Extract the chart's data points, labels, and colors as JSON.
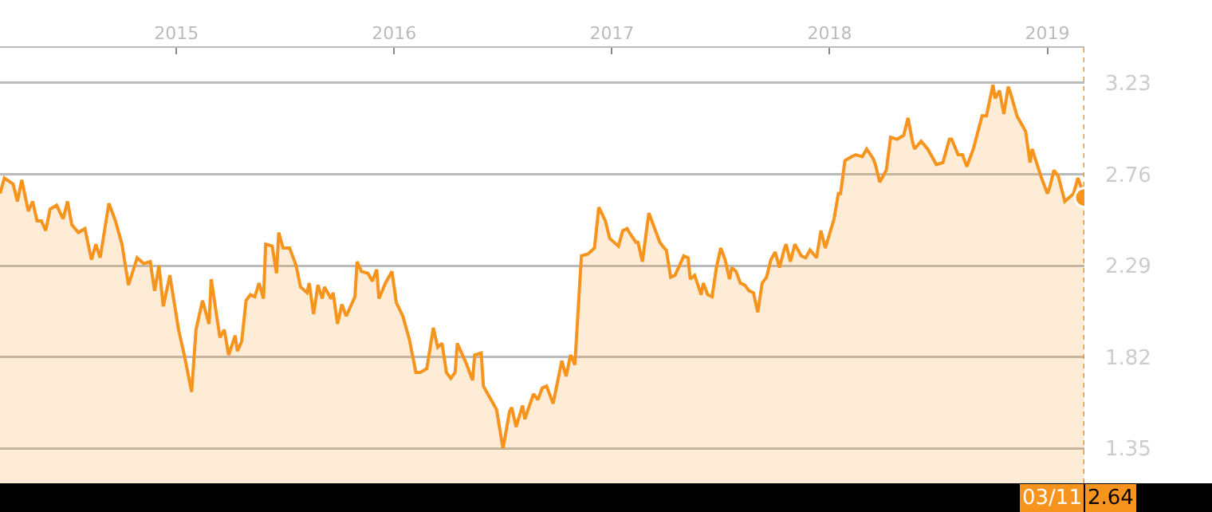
{
  "chart_data": {
    "type": "area",
    "x": [
      2014.19,
      2014.21,
      2014.25,
      2014.27,
      2014.29,
      2014.32,
      2014.34,
      2014.36,
      2014.38,
      2014.4,
      2014.42,
      2014.45,
      2014.48,
      2014.5,
      2014.52,
      2014.55,
      2014.58,
      2014.61,
      2014.63,
      2014.65,
      2014.69,
      2014.72,
      2014.75,
      2014.78,
      2014.82,
      2014.85,
      2014.88,
      2014.9,
      2014.92,
      2014.94,
      2014.97,
      2015.01,
      2015.04,
      2015.07,
      2015.09,
      2015.12,
      2015.15,
      2015.16,
      2015.2,
      2015.22,
      2015.24,
      2015.27,
      2015.28,
      2015.3,
      2015.32,
      2015.34,
      2015.36,
      2015.38,
      2015.4,
      2015.41,
      2015.44,
      2015.46,
      2015.47,
      2015.49,
      2015.52,
      2015.55,
      2015.57,
      2015.6,
      2015.61,
      2015.63,
      2015.65,
      2015.67,
      2015.68,
      2015.71,
      2015.72,
      2015.74,
      2015.76,
      2015.78,
      2015.82,
      2015.83,
      2015.85,
      2015.88,
      2015.9,
      2015.92,
      2015.93,
      2015.96,
      2015.99,
      2016.01,
      2016.04,
      2016.07,
      2016.1,
      2016.12,
      2016.15,
      2016.18,
      2016.2,
      2016.22,
      2016.24,
      2016.26,
      2016.28,
      2016.29,
      2016.33,
      2016.36,
      2016.37,
      2016.4,
      2016.41,
      2016.44,
      2016.47,
      2016.5,
      2016.53,
      2016.54,
      2016.56,
      2016.59,
      2016.6,
      2016.64,
      2016.66,
      2016.68,
      2016.7,
      2016.73,
      2016.77,
      2016.79,
      2016.81,
      2016.83,
      2016.86,
      2016.89,
      2016.92,
      2016.94,
      2016.97,
      2016.99,
      2017.03,
      2017.05,
      2017.07,
      2017.08,
      2017.11,
      2017.12,
      2017.14,
      2017.16,
      2017.17,
      2017.22,
      2017.24,
      2017.25,
      2017.27,
      2017.29,
      2017.33,
      2017.35,
      2017.36,
      2017.38,
      2017.41,
      2017.42,
      2017.44,
      2017.46,
      2017.48,
      2017.5,
      2017.52,
      2017.54,
      2017.55,
      2017.57,
      2017.59,
      2017.61,
      2017.63,
      2017.65,
      2017.67,
      2017.69,
      2017.71,
      2017.73,
      2017.75,
      2017.77,
      2017.79,
      2017.8,
      2017.82,
      2017.84,
      2017.87,
      2017.89,
      2017.91,
      2017.94,
      2017.96,
      2017.98,
      2018.02,
      2018.04,
      2018.05,
      2018.07,
      2018.1,
      2018.12,
      2018.15,
      2018.17,
      2018.2,
      2018.21,
      2018.23,
      2018.26,
      2018.28,
      2018.31,
      2018.34,
      2018.36,
      2018.38,
      2018.39,
      2018.42,
      2018.45,
      2018.49,
      2018.52,
      2018.55,
      2018.56,
      2018.59,
      2018.61,
      2018.63,
      2018.66,
      2018.7,
      2018.72,
      2018.75,
      2018.76,
      2018.78,
      2018.8,
      2018.82,
      2018.83,
      2018.86,
      2018.88,
      2018.9,
      2018.92,
      2018.93,
      2018.97,
      2019.0,
      2019.01,
      2019.03,
      2019.05,
      2019.08,
      2019.11,
      2019.12,
      2019.14,
      2019.16,
      2019.17
    ],
    "series": [
      {
        "color": "#f7941d",
        "values": [
          2.66,
          2.74,
          2.71,
          2.62,
          2.73,
          2.57,
          2.62,
          2.52,
          2.52,
          2.47,
          2.58,
          2.6,
          2.53,
          2.62,
          2.5,
          2.46,
          2.48,
          2.32,
          2.4,
          2.33,
          2.61,
          2.52,
          2.4,
          2.19,
          2.33,
          2.3,
          2.31,
          2.16,
          2.29,
          2.08,
          2.24,
          1.96,
          1.81,
          1.64,
          1.96,
          2.11,
          1.99,
          2.22,
          1.92,
          1.96,
          1.83,
          1.93,
          1.85,
          1.9,
          2.11,
          2.14,
          2.13,
          2.2,
          2.12,
          2.4,
          2.39,
          2.25,
          2.46,
          2.38,
          2.38,
          2.29,
          2.18,
          2.15,
          2.2,
          2.04,
          2.19,
          2.12,
          2.18,
          2.12,
          2.15,
          1.99,
          2.09,
          2.03,
          2.13,
          2.31,
          2.26,
          2.25,
          2.21,
          2.27,
          2.12,
          2.2,
          2.26,
          2.1,
          2.03,
          1.91,
          1.74,
          1.74,
          1.76,
          1.97,
          1.87,
          1.89,
          1.74,
          1.71,
          1.74,
          1.89,
          1.79,
          1.7,
          1.83,
          1.84,
          1.67,
          1.61,
          1.55,
          1.35,
          1.54,
          1.56,
          1.46,
          1.57,
          1.5,
          1.63,
          1.6,
          1.66,
          1.67,
          1.58,
          1.8,
          1.72,
          1.83,
          1.78,
          2.34,
          2.35,
          2.38,
          2.59,
          2.52,
          2.43,
          2.39,
          2.47,
          2.48,
          2.46,
          2.41,
          2.41,
          2.31,
          2.48,
          2.56,
          2.41,
          2.38,
          2.37,
          2.23,
          2.24,
          2.34,
          2.33,
          2.22,
          2.24,
          2.14,
          2.2,
          2.14,
          2.13,
          2.28,
          2.38,
          2.32,
          2.22,
          2.28,
          2.26,
          2.2,
          2.19,
          2.16,
          2.15,
          2.05,
          2.2,
          2.23,
          2.32,
          2.36,
          2.28,
          2.37,
          2.4,
          2.31,
          2.4,
          2.34,
          2.33,
          2.37,
          2.33,
          2.47,
          2.38,
          2.53,
          2.66,
          2.66,
          2.83,
          2.85,
          2.86,
          2.85,
          2.89,
          2.84,
          2.81,
          2.72,
          2.78,
          2.95,
          2.94,
          2.96,
          3.05,
          2.93,
          2.89,
          2.93,
          2.89,
          2.81,
          2.82,
          2.94,
          2.94,
          2.86,
          2.86,
          2.8,
          2.89,
          3.06,
          3.06,
          3.22,
          3.15,
          3.19,
          3.07,
          3.21,
          3.18,
          3.06,
          3.02,
          2.98,
          2.82,
          2.89,
          2.75,
          2.66,
          2.69,
          2.78,
          2.75,
          2.62,
          2.65,
          2.66,
          2.74,
          2.68,
          2.64
        ]
      }
    ],
    "xlim": [
      2014.19,
      2019.17
    ],
    "xticks": [
      2015,
      2016,
      2017,
      2018,
      2019
    ],
    "ylim": [
      1.17,
      3.41
    ],
    "yticks": [
      1.35,
      1.82,
      2.29,
      2.76,
      3.23
    ],
    "grid": "y",
    "ref_lines": [
      {
        "axis": "x",
        "value": 2019.17,
        "line_style": "dotted",
        "color": "#f7941d"
      }
    ],
    "annotations": [
      "03/11",
      "2.64"
    ]
  }
}
